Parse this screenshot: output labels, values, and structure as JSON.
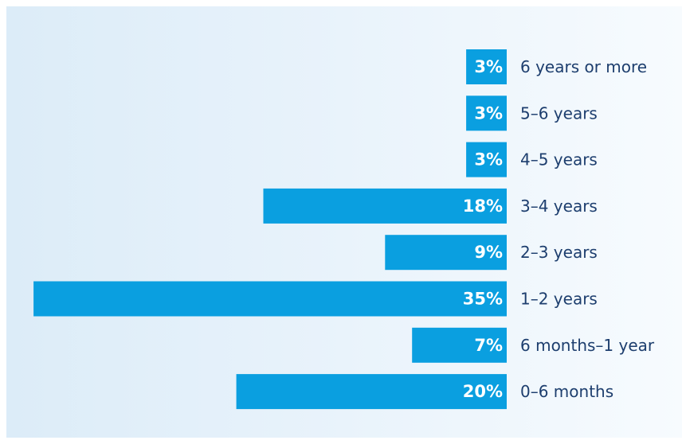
{
  "chart_data": {
    "type": "bar",
    "orientation": "horizontal",
    "categories": [
      "6 years or more",
      "5–6 years",
      "4–5 years",
      "3–4 years",
      "2–3 years",
      "1–2 years",
      "6 months–1 year",
      "0–6 months"
    ],
    "values": [
      3,
      3,
      3,
      18,
      9,
      35,
      7,
      20
    ],
    "value_labels": [
      "3%",
      "3%",
      "3%",
      "18%",
      "9%",
      "35%",
      "7%",
      "20%"
    ],
    "unit": "%",
    "title": "",
    "xlabel": "",
    "ylabel": "",
    "xlim": [
      0,
      35
    ],
    "grid": false,
    "legend": "none",
    "colors": {
      "bar": "#0a9fe0",
      "value_text": "#ffffff",
      "category_text": "#1d3e6e",
      "background_left": "#dcecf8",
      "background_right": "#f7fbfe"
    }
  }
}
